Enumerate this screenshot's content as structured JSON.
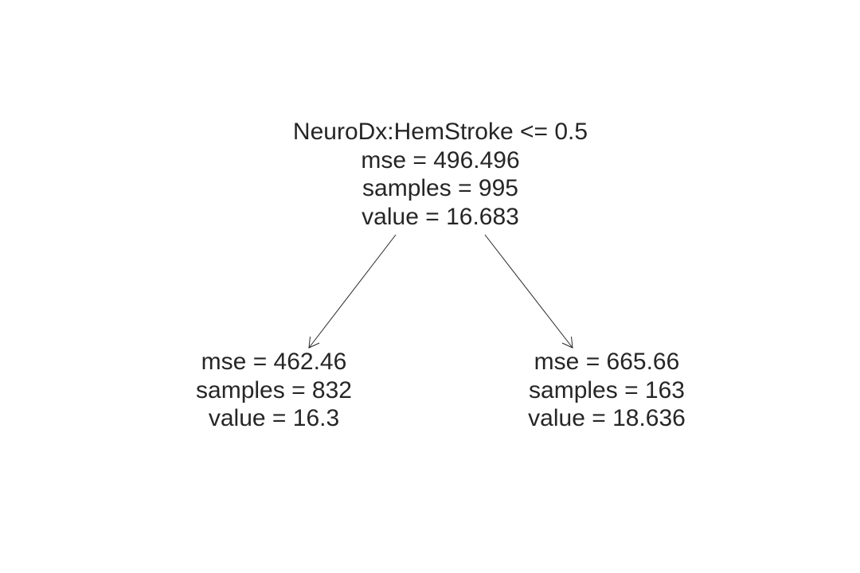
{
  "tree": {
    "root": {
      "split": "NeuroDx:HemStroke <= 0.5",
      "mse": "mse = 496.496",
      "samples": "samples = 995",
      "value": "value = 16.683"
    },
    "left": {
      "mse": "mse = 462.46",
      "samples": "samples = 832",
      "value": "value = 16.3"
    },
    "right": {
      "mse": "mse = 665.66",
      "samples": "samples = 163",
      "value": "value = 18.636"
    }
  },
  "colors": {
    "text": "#262626",
    "edge": "#262626",
    "background": "#ffffff"
  }
}
